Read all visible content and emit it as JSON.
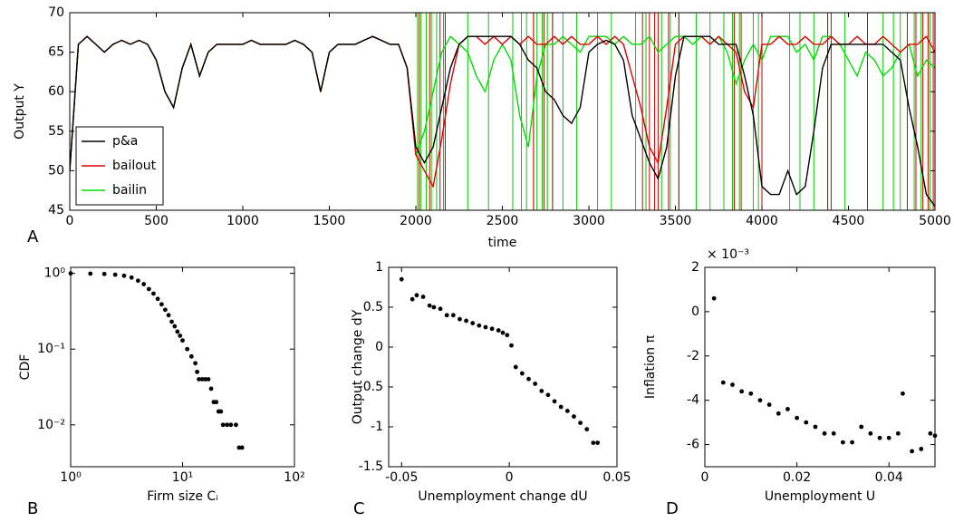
{
  "chart_data": [
    {
      "type": "line",
      "panel_label": "A",
      "xlabel": "time",
      "ylabel": "Output Y",
      "xlim": [
        0,
        5000
      ],
      "ylim": [
        45,
        70
      ],
      "xticks": [
        0,
        500,
        1000,
        1500,
        2000,
        2500,
        3000,
        3500,
        4000,
        4500,
        5000
      ],
      "yticks": [
        45,
        50,
        55,
        60,
        65,
        70
      ],
      "legend": "lower-left",
      "x": [
        0,
        50,
        100,
        150,
        200,
        250,
        300,
        350,
        400,
        450,
        500,
        550,
        600,
        650,
        700,
        750,
        800,
        850,
        900,
        950,
        1000,
        1050,
        1100,
        1150,
        1200,
        1250,
        1300,
        1350,
        1400,
        1450,
        1500,
        1550,
        1600,
        1650,
        1700,
        1750,
        1800,
        1850,
        1900,
        1950,
        2000,
        2050,
        2100,
        2150,
        2200,
        2250,
        2300,
        2350,
        2400,
        2450,
        2500,
        2550,
        2600,
        2650,
        2700,
        2750,
        2800,
        2850,
        2900,
        2950,
        3000,
        3050,
        3100,
        3150,
        3200,
        3250,
        3300,
        3350,
        3400,
        3450,
        3500,
        3550,
        3600,
        3650,
        3700,
        3750,
        3800,
        3850,
        3900,
        3950,
        4000,
        4050,
        4100,
        4150,
        4200,
        4250,
        4300,
        4350,
        4400,
        4450,
        4500,
        4550,
        4600,
        4650,
        4700,
        4750,
        4800,
        4850,
        4900,
        4950,
        5000
      ],
      "series": [
        {
          "name": "p&a",
          "color": "#000000",
          "values": [
            50,
            66,
            67,
            66,
            65,
            66,
            66.5,
            66,
            66.5,
            66,
            64,
            60,
            58,
            63,
            66,
            62,
            65,
            66,
            66,
            66,
            66,
            66.5,
            66,
            66,
            66,
            66,
            66.5,
            66,
            65,
            60,
            65,
            66,
            66,
            66,
            66.5,
            67,
            66.5,
            66,
            66,
            63,
            53,
            51,
            53,
            58,
            63,
            66,
            67,
            67,
            67,
            67,
            67,
            67,
            66,
            64,
            63,
            60,
            59,
            57,
            56,
            58,
            65,
            66,
            66.5,
            66,
            64,
            57,
            54,
            51,
            49,
            53,
            62,
            67,
            67,
            67,
            67,
            66,
            66,
            66,
            62,
            57,
            48,
            47,
            47,
            50,
            47,
            48,
            55,
            63,
            66,
            66,
            66,
            66,
            66,
            66,
            66,
            65,
            64,
            58,
            53,
            47,
            45.5
          ]
        },
        {
          "name": "bailout",
          "color": "#e00000",
          "values": [
            50,
            66,
            67,
            66,
            65,
            66,
            66.5,
            66,
            66.5,
            66,
            64,
            60,
            58,
            63,
            66,
            62,
            65,
            66,
            66,
            66,
            66,
            66.5,
            66,
            66,
            66,
            66,
            66.5,
            66,
            65,
            60,
            65,
            66,
            66,
            66,
            66.5,
            67,
            66.5,
            66,
            66,
            63,
            52,
            50,
            48,
            54,
            61,
            66,
            67,
            67,
            66,
            67,
            66,
            67,
            66,
            67,
            66,
            66,
            67,
            66,
            67,
            66,
            66,
            67,
            66,
            67,
            66,
            62,
            58,
            53,
            51,
            58,
            66,
            67,
            67,
            67,
            66,
            67,
            66,
            65,
            60,
            58,
            66,
            66,
            67,
            66,
            66,
            67,
            66,
            66,
            67,
            66,
            66,
            67,
            66,
            66,
            67,
            66,
            65,
            66,
            66,
            67,
            65
          ]
        },
        {
          "name": "bailin",
          "color": "#00dd00",
          "values": [
            50,
            66,
            67,
            66,
            65,
            66,
            66.5,
            66,
            66.5,
            66,
            64,
            60,
            58,
            63,
            66,
            62,
            65,
            66,
            66,
            66,
            66,
            66.5,
            66,
            66,
            66,
            66,
            66.5,
            66,
            65,
            60,
            65,
            66,
            66,
            66,
            66.5,
            67,
            66.5,
            66,
            66,
            63,
            52,
            55,
            60,
            65,
            67,
            66,
            65,
            62,
            60,
            64,
            66,
            64,
            57,
            53,
            62,
            66,
            66,
            67,
            66,
            65,
            67,
            67,
            67,
            66,
            67,
            66,
            66,
            67,
            65,
            66,
            67,
            67,
            66,
            67,
            66,
            67,
            65,
            61,
            64,
            66,
            64,
            67,
            67,
            67,
            65,
            66,
            64,
            67,
            67,
            66,
            64,
            62,
            65,
            64,
            62,
            63,
            65,
            66,
            62,
            64,
            63
          ]
        }
      ],
      "vlines": [
        {
          "color": "#00cc00",
          "x": [
            2010,
            2030,
            2060,
            2090,
            2120,
            2160,
            2300,
            2420,
            2560,
            2610,
            2640,
            2680,
            2700,
            2730,
            2760,
            2790,
            2850,
            2930,
            3050,
            3130,
            3270,
            3330,
            3420,
            3470,
            3520,
            3620,
            3700,
            3780,
            3830,
            3870,
            3950,
            3980,
            4160,
            4220,
            4300,
            4380,
            4480,
            4610,
            4700,
            4760,
            4800,
            4880,
            4920,
            4970
          ]
        },
        {
          "color": "#cc0000",
          "x": [
            2020,
            2080,
            2140,
            2170,
            2680,
            2740,
            2790,
            3310,
            3350,
            3380,
            3400,
            3460,
            3520,
            3840,
            3880,
            4000,
            4380,
            4400,
            4610,
            4840,
            4890,
            4930,
            4960,
            4990
          ]
        }
      ]
    },
    {
      "type": "scatter",
      "panel_label": "B",
      "xlabel": "Firm size Cᵢ",
      "ylabel": "CDF",
      "xscale": "log",
      "yscale": "log",
      "xlim": [
        1,
        100
      ],
      "ylim": [
        0.0028,
        1.2
      ],
      "color": "#000000",
      "xticks": [
        {
          "value": 1,
          "label": "10⁰"
        },
        {
          "value": 10,
          "label": "10¹"
        },
        {
          "value": 100,
          "label": "10²"
        }
      ],
      "yticks": [
        {
          "value": 0.01,
          "label": "10⁻²"
        },
        {
          "value": 0.1,
          "label": "10⁻¹"
        },
        {
          "value": 1,
          "label": "10⁰"
        }
      ],
      "x": [
        1,
        1.5,
        2,
        2.5,
        3,
        3.5,
        4,
        4.5,
        5,
        5.5,
        6,
        6.5,
        7,
        7.5,
        8,
        8.5,
        9,
        9.5,
        10,
        11,
        12,
        13,
        13.5,
        14,
        15,
        16,
        17,
        18,
        19,
        20,
        21,
        22,
        23,
        25,
        27,
        30,
        32,
        34
      ],
      "values": [
        1,
        0.99,
        0.98,
        0.96,
        0.93,
        0.88,
        0.8,
        0.72,
        0.62,
        0.54,
        0.46,
        0.39,
        0.33,
        0.28,
        0.23,
        0.2,
        0.17,
        0.15,
        0.13,
        0.1,
        0.08,
        0.065,
        0.05,
        0.04,
        0.04,
        0.04,
        0.04,
        0.03,
        0.02,
        0.02,
        0.015,
        0.015,
        0.01,
        0.01,
        0.01,
        0.01,
        0.005,
        0.005
      ]
    },
    {
      "type": "scatter",
      "panel_label": "C",
      "xlabel": "Unemployment change dU",
      "ylabel": "Output change dY",
      "xlim": [
        -0.056,
        0.05
      ],
      "ylim": [
        -1.5,
        1
      ],
      "color": "#000000",
      "xticks": [
        -0.05,
        0,
        0.05
      ],
      "yticks": [
        -1.5,
        -1,
        -0.5,
        0,
        0.5,
        1
      ],
      "x": [
        -0.05,
        -0.045,
        -0.043,
        -0.04,
        -0.037,
        -0.035,
        -0.032,
        -0.029,
        -0.026,
        -0.023,
        -0.02,
        -0.017,
        -0.014,
        -0.011,
        -0.008,
        -0.005,
        -0.003,
        -0.001,
        0.001,
        0.003,
        0.006,
        0.009,
        0.012,
        0.015,
        0.018,
        0.021,
        0.024,
        0.027,
        0.03,
        0.033,
        0.036,
        0.039,
        0.041
      ],
      "values": [
        0.85,
        0.6,
        0.65,
        0.63,
        0.52,
        0.5,
        0.48,
        0.4,
        0.4,
        0.35,
        0.33,
        0.3,
        0.27,
        0.25,
        0.23,
        0.21,
        0.18,
        0.15,
        0.02,
        -0.25,
        -0.33,
        -0.4,
        -0.46,
        -0.55,
        -0.6,
        -0.68,
        -0.75,
        -0.8,
        -0.87,
        -0.95,
        -1.03,
        -1.2,
        -1.2
      ]
    },
    {
      "type": "scatter",
      "panel_label": "D",
      "xlabel": "Unemployment U",
      "ylabel": "Inflation π",
      "y_multiplier": "× 10⁻³",
      "xlim": [
        0,
        0.05
      ],
      "ylim": [
        -7,
        2
      ],
      "color": "#000000",
      "xticks": [
        0,
        0.02,
        0.04
      ],
      "yticks": [
        -6,
        -4,
        -2,
        0,
        2
      ],
      "x": [
        0.002,
        0.004,
        0.006,
        0.008,
        0.01,
        0.012,
        0.014,
        0.016,
        0.018,
        0.02,
        0.022,
        0.024,
        0.026,
        0.028,
        0.03,
        0.032,
        0.034,
        0.036,
        0.038,
        0.04,
        0.042,
        0.043,
        0.045,
        0.047,
        0.049,
        0.05
      ],
      "values": [
        0.6,
        -3.2,
        -3.3,
        -3.6,
        -3.7,
        -4,
        -4.2,
        -4.6,
        -4.4,
        -4.8,
        -5,
        -5.2,
        -5.5,
        -5.5,
        -5.9,
        -5.9,
        -5.2,
        -5.5,
        -5.7,
        -5.7,
        -5.5,
        -3.7,
        -6.3,
        -6.2,
        -5.5,
        -5.6
      ]
    }
  ]
}
